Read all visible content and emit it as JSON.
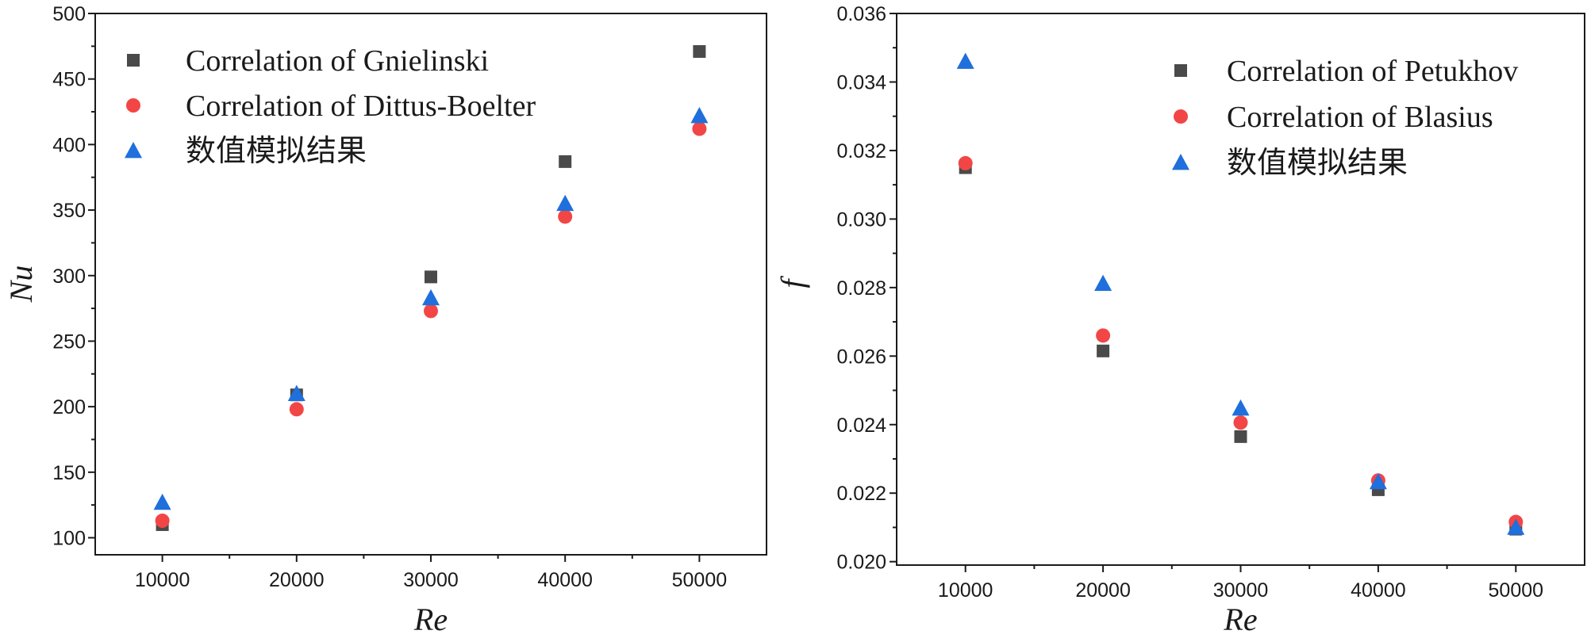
{
  "chart_data": [
    {
      "type": "scatter",
      "xlabel": "Re",
      "ylabel": "Nu",
      "xlim": [
        5000,
        55000
      ],
      "ylim": [
        87,
        500
      ],
      "x": [
        10000,
        20000,
        30000,
        40000,
        50000
      ],
      "xticks": [
        10000,
        20000,
        30000,
        40000,
        50000
      ],
      "yticks": [
        100,
        150,
        200,
        250,
        300,
        350,
        400,
        450,
        500
      ],
      "legend_position": "top-left",
      "series": [
        {
          "name": "Correlation of Gnielinski",
          "marker": "square",
          "color": "#4a4a4a",
          "values": [
            110,
            209,
            299,
            387,
            471
          ]
        },
        {
          "name": "Correlation of Dittus-Boelter",
          "marker": "circle",
          "color": "#f24646",
          "values": [
            113,
            198,
            273,
            345,
            412
          ]
        },
        {
          "name": "数值模拟结果",
          "marker": "triangle",
          "color": "#1f6fdc",
          "values": [
            127,
            210,
            283,
            355,
            422
          ]
        }
      ]
    },
    {
      "type": "scatter",
      "xlabel": "Re",
      "ylabel": "f",
      "xlim": [
        5000,
        55000
      ],
      "ylim": [
        0.0199,
        0.036
      ],
      "x": [
        10000,
        20000,
        30000,
        40000,
        50000
      ],
      "xticks": [
        10000,
        20000,
        30000,
        40000,
        50000
      ],
      "yticks": [
        0.02,
        0.022,
        0.024,
        0.026,
        0.028,
        0.03,
        0.032,
        0.034,
        0.036
      ],
      "ytick_labels": [
        "0.020",
        "0.022",
        "0.024",
        "0.026",
        "0.028",
        "0.030",
        "0.032",
        "0.034",
        "0.036"
      ],
      "legend_position": "top-right",
      "series": [
        {
          "name": "Correlation of Petukhov",
          "marker": "square",
          "color": "#4a4a4a",
          "values": [
            0.0315,
            0.02615,
            0.02365,
            0.0221,
            0.02095
          ]
        },
        {
          "name": "Correlation of Blasius",
          "marker": "circle",
          "color": "#f24646",
          "values": [
            0.03163,
            0.0266,
            0.02406,
            0.02237,
            0.02116
          ]
        },
        {
          "name": "数值模拟结果",
          "marker": "triangle",
          "color": "#1f6fdc",
          "values": [
            0.0346,
            0.02812,
            0.02448,
            0.02233,
            0.021
          ]
        }
      ]
    }
  ]
}
